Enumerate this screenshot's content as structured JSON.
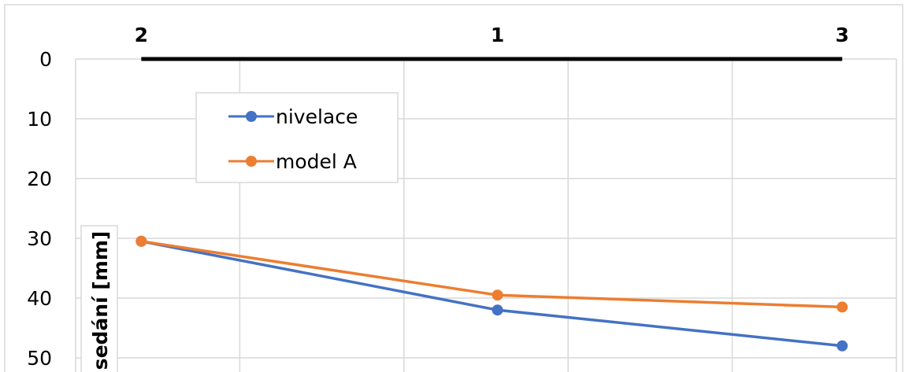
{
  "chart_data": {
    "type": "line",
    "categories": [
      "2",
      "1",
      "3"
    ],
    "x_positions": [
      0,
      2.17,
      4.27
    ],
    "xlim": [
      -0.4,
      4.6
    ],
    "ylim": [
      0,
      50
    ],
    "y_inverted": true,
    "y_ticks": [
      0,
      10,
      20,
      30,
      40,
      50
    ],
    "ylabel": "sedání [mm]",
    "grid": true,
    "legend_position": "top-left",
    "series": [
      {
        "name": "nivelace",
        "color": "#4472C4",
        "values": [
          30.5,
          42,
          48
        ]
      },
      {
        "name": "model A",
        "color": "#ED7D31",
        "values": [
          30.5,
          39.5,
          41.5
        ]
      }
    ],
    "baseline_color": "#000000"
  }
}
